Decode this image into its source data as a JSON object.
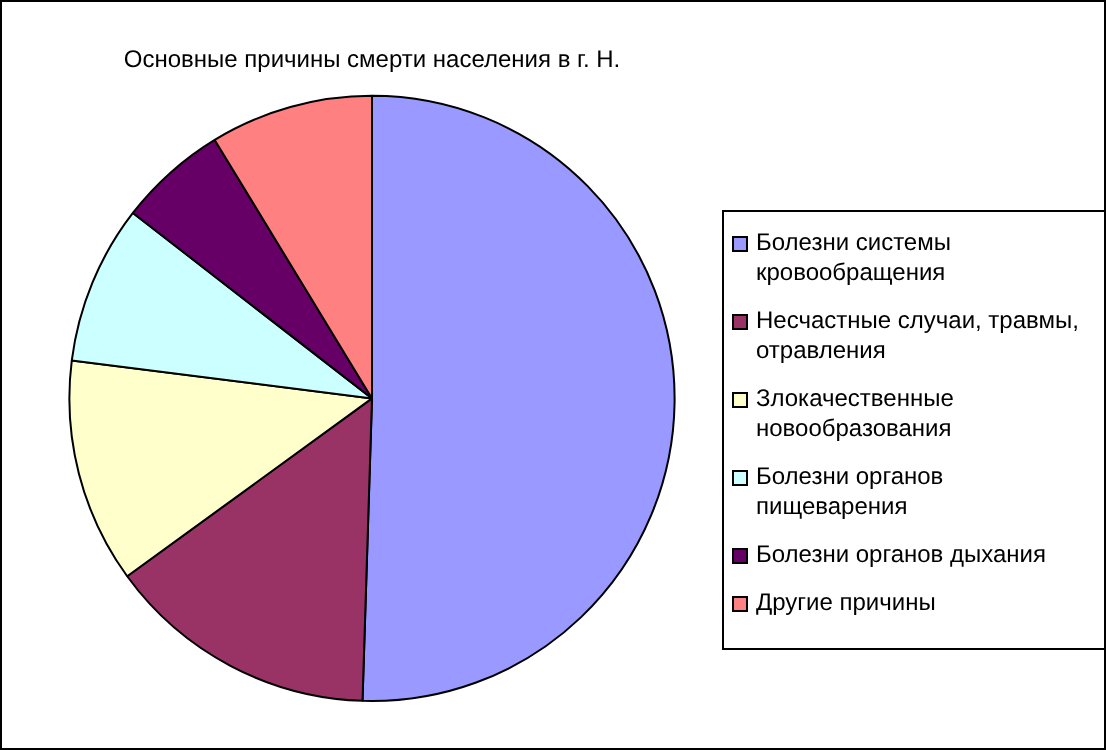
{
  "chart_data": {
    "type": "pie",
    "title": "Основные причины смерти населения в г. Н.",
    "categories": [
      "Болезни системы кровообращения",
      "Несчастные случаи, травмы, отравления",
      "Злокачественные новообразования",
      "Болезни органов пищеварения",
      "Болезни органов дыхания",
      "Другие причины"
    ],
    "values": [
      50.5,
      14.5,
      12,
      8.5,
      5.8,
      8.7
    ],
    "colors": [
      "#9999ff",
      "#993366",
      "#ffffcc",
      "#ccffff",
      "#660066",
      "#ff8080"
    ],
    "legend": "right"
  }
}
